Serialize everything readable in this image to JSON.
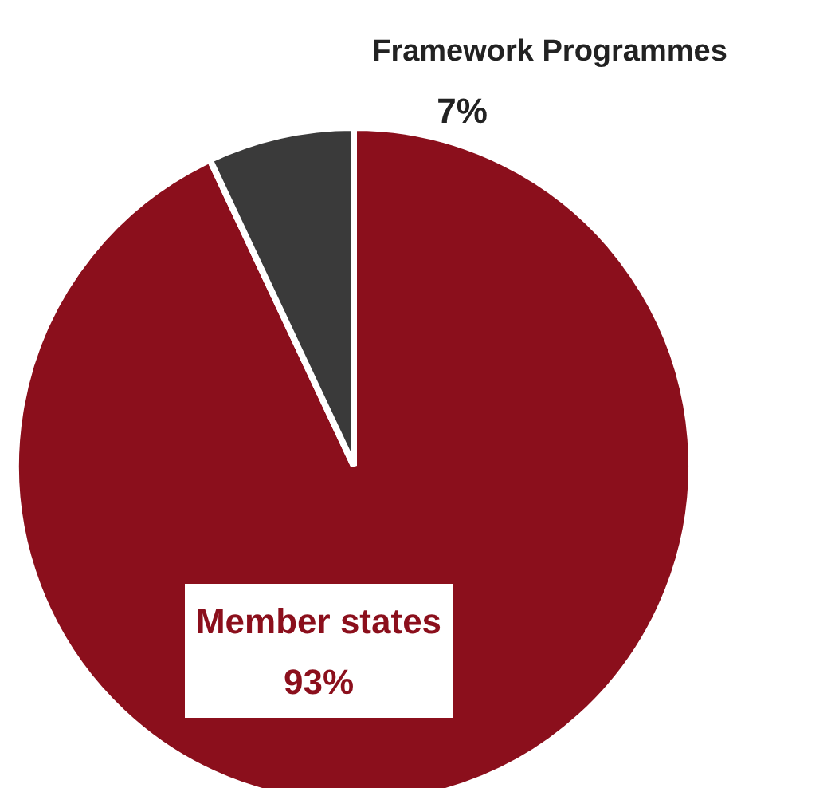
{
  "chart_data": {
    "type": "pie",
    "categories": [
      "Member states",
      "Framework Programmes"
    ],
    "values": [
      93,
      7
    ],
    "colors": [
      "#8b0f1c",
      "#3a3a3a"
    ],
    "value_labels": [
      "93%",
      "7%"
    ]
  }
}
